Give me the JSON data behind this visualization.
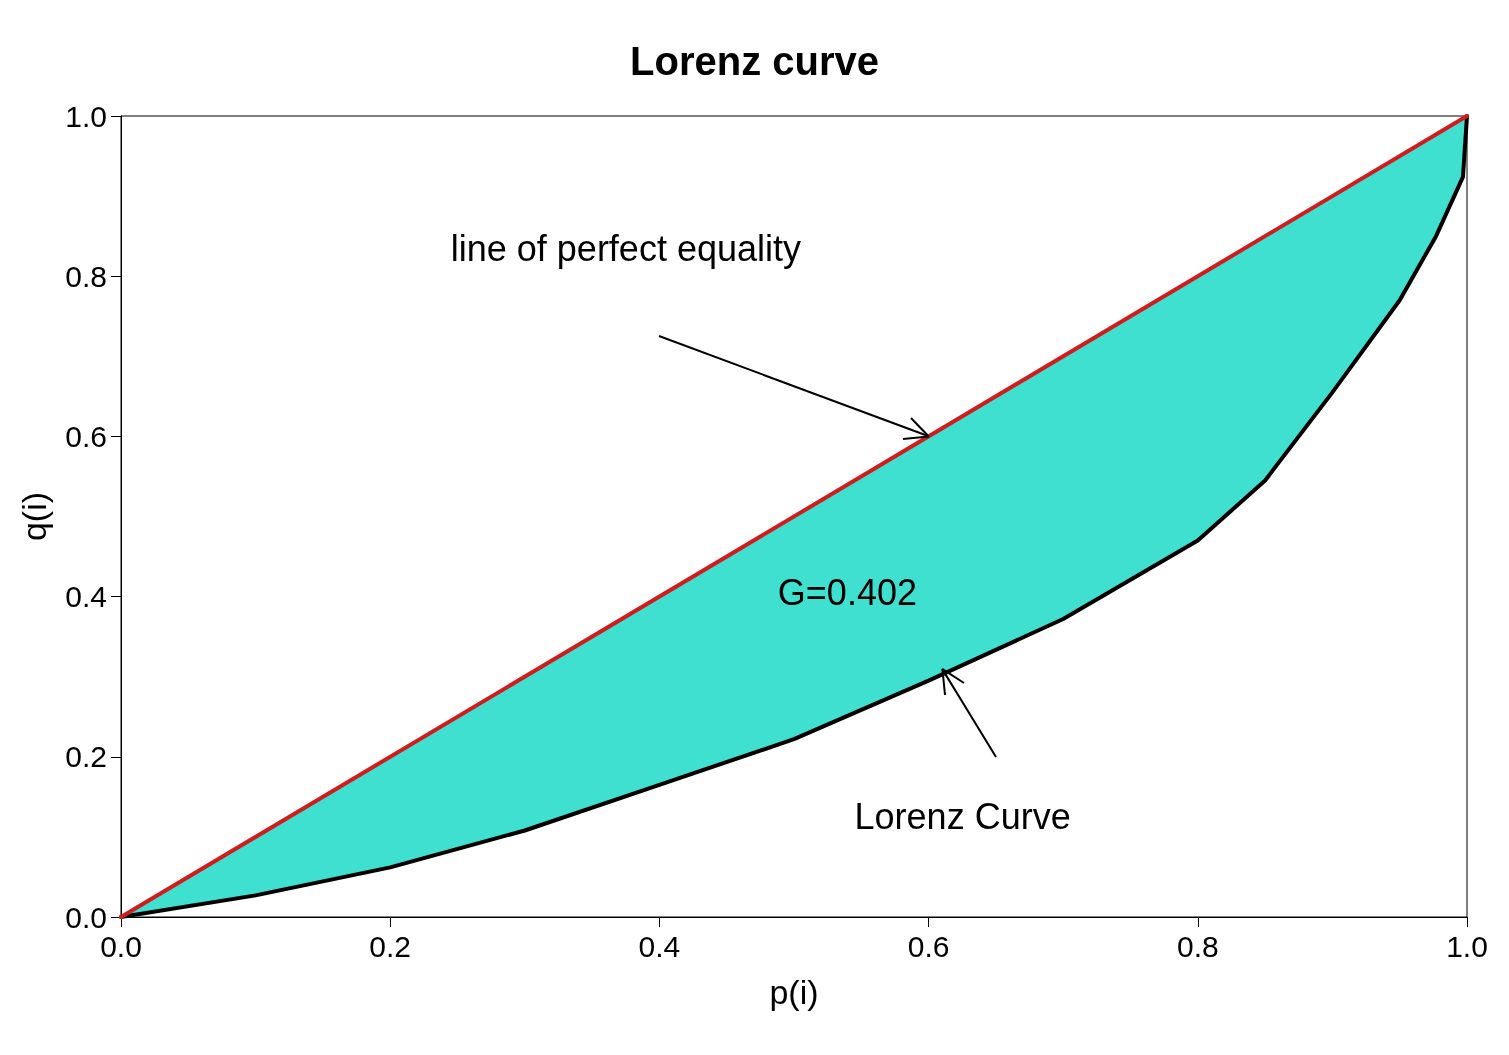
{
  "chart_data": {
    "type": "line",
    "title": "Lorenz curve",
    "xlabel": "p(i)",
    "ylabel": "q(i)",
    "xlim": [
      0,
      1
    ],
    "ylim": [
      0,
      1
    ],
    "xticks": [
      {
        "value": 0,
        "label": "0.0"
      },
      {
        "value": 0.2,
        "label": "0.2"
      },
      {
        "value": 0.4,
        "label": "0.4"
      },
      {
        "value": 0.6,
        "label": "0.6"
      },
      {
        "value": 0.8,
        "label": "0.8"
      },
      {
        "value": 1,
        "label": "1.0"
      }
    ],
    "yticks": [
      {
        "value": 0,
        "label": "0.0"
      },
      {
        "value": 0.2,
        "label": "0.2"
      },
      {
        "value": 0.4,
        "label": "0.4"
      },
      {
        "value": 0.6,
        "label": "0.6"
      },
      {
        "value": 0.8,
        "label": "0.8"
      },
      {
        "value": 1,
        "label": "1.0"
      }
    ],
    "grid": false,
    "marker": "none",
    "line_style": "solid",
    "series": [
      {
        "color": "#000000",
        "x": [
          0,
          0.1,
          0.2,
          0.3,
          0.4,
          0.5,
          0.6,
          0.7,
          0.8,
          0.85,
          0.9,
          0.95,
          0.977,
          0.997,
          1
        ],
        "values": [
          0,
          0.027,
          0.062,
          0.108,
          0.165,
          0.222,
          0.295,
          0.372,
          0.47,
          0.545,
          0.655,
          0.77,
          0.85,
          0.924,
          1
        ],
        "lower": [
          0,
          0.027,
          0.062,
          0.108,
          0.165,
          0.222,
          0.295,
          0.372,
          0.47,
          0.545,
          0.655,
          0.77,
          0.85,
          0.924,
          1
        ],
        "upper": [
          0,
          0.1,
          0.2,
          0.3,
          0.4,
          0.5,
          0.6,
          0.7,
          0.8,
          0.85,
          0.9,
          0.95,
          0.977,
          0.997,
          1
        ]
      },
      {
        "color": "#d01c1c",
        "x": [
          0,
          1
        ],
        "values": [
          0,
          1
        ]
      }
    ],
    "annotations": [
      "line of perfect equality",
      "Lorenz Curve",
      "G=0.402"
    ]
  }
}
